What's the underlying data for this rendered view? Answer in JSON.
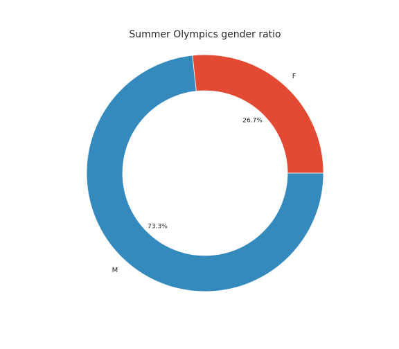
{
  "chart_data": {
    "type": "pie",
    "title": "Summer Olympics gender ratio",
    "donut": true,
    "start_angle_deg": 0,
    "direction": "counterclockwise",
    "slices": [
      {
        "label": "F",
        "value": 26.7,
        "pct_label": "26.7%",
        "color": "#e24a33"
      },
      {
        "label": "M",
        "value": 73.3,
        "pct_label": "73.3%",
        "color": "#348abd"
      }
    ]
  }
}
